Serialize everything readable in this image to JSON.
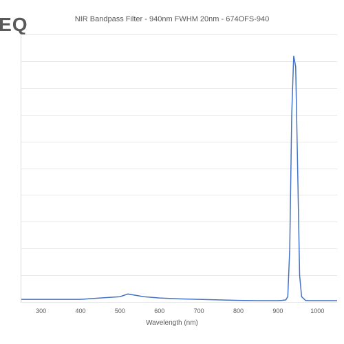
{
  "watermark": "TEQ",
  "chart": {
    "type": "line",
    "title": "NIR Bandpass Filter - 940nm FWHM 20nm - 674OFS-940",
    "title_fontsize": 11,
    "title_color": "#595959",
    "xlabel": "Wavelength (nm)",
    "label_fontsize": 10,
    "label_color": "#595959",
    "xlim": [
      250,
      1050
    ],
    "ylim": [
      0,
      100
    ],
    "x_ticks": [
      300,
      400,
      500,
      600,
      700,
      800,
      900,
      1000
    ],
    "y_gridlines": [
      0,
      10,
      20,
      30,
      40,
      50,
      60,
      70,
      80,
      90,
      100
    ],
    "tick_fontsize": 9,
    "tick_color": "#595959",
    "line_color": "#4472c4",
    "line_width": 1.5,
    "background_color": "#ffffff",
    "grid_color": "#e8e8e8",
    "border_color": "#d9d9d9",
    "data_x": [
      250,
      300,
      350,
      400,
      450,
      500,
      520,
      540,
      560,
      600,
      650,
      700,
      750,
      800,
      850,
      880,
      900,
      910,
      920,
      925,
      930,
      935,
      940,
      945,
      950,
      955,
      960,
      970,
      980,
      1000,
      1050
    ],
    "data_y": [
      1,
      1,
      1,
      1,
      1.5,
      2,
      3,
      2.5,
      2,
      1.5,
      1.2,
      1,
      0.8,
      0.6,
      0.5,
      0.5,
      0.5,
      0.6,
      0.8,
      2,
      20,
      70,
      92,
      88,
      50,
      10,
      2,
      0.6,
      0.5,
      0.5,
      0.5
    ]
  }
}
